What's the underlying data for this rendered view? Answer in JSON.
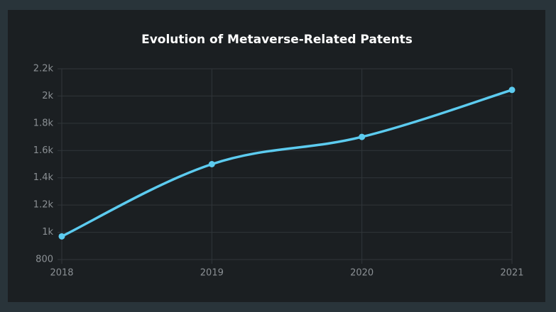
{
  "chart_data": {
    "type": "line",
    "title": "Evolution of Metaverse-Related Patents",
    "x": [
      2018,
      2019,
      2020,
      2021
    ],
    "series": [
      {
        "color": "#5ccbef",
        "values": [
          970,
          1500,
          1700,
          2045
        ]
      }
    ],
    "xlim": [
      2018,
      2021
    ],
    "xticks": [
      2018,
      2019,
      2020,
      2021
    ],
    "ylim": [
      800,
      2200
    ],
    "yticks": [
      800,
      {
        "value": 1000,
        "label": "1k"
      },
      {
        "value": 1200,
        "label": "1.2k"
      },
      {
        "value": 1400,
        "label": "1.4k"
      },
      {
        "value": 1600,
        "label": "1.6k"
      },
      {
        "value": 1800,
        "label": "1.8k"
      },
      {
        "value": 2000,
        "label": "2k"
      },
      {
        "value": 2200,
        "label": "2.2k"
      }
    ],
    "grid": true
  }
}
